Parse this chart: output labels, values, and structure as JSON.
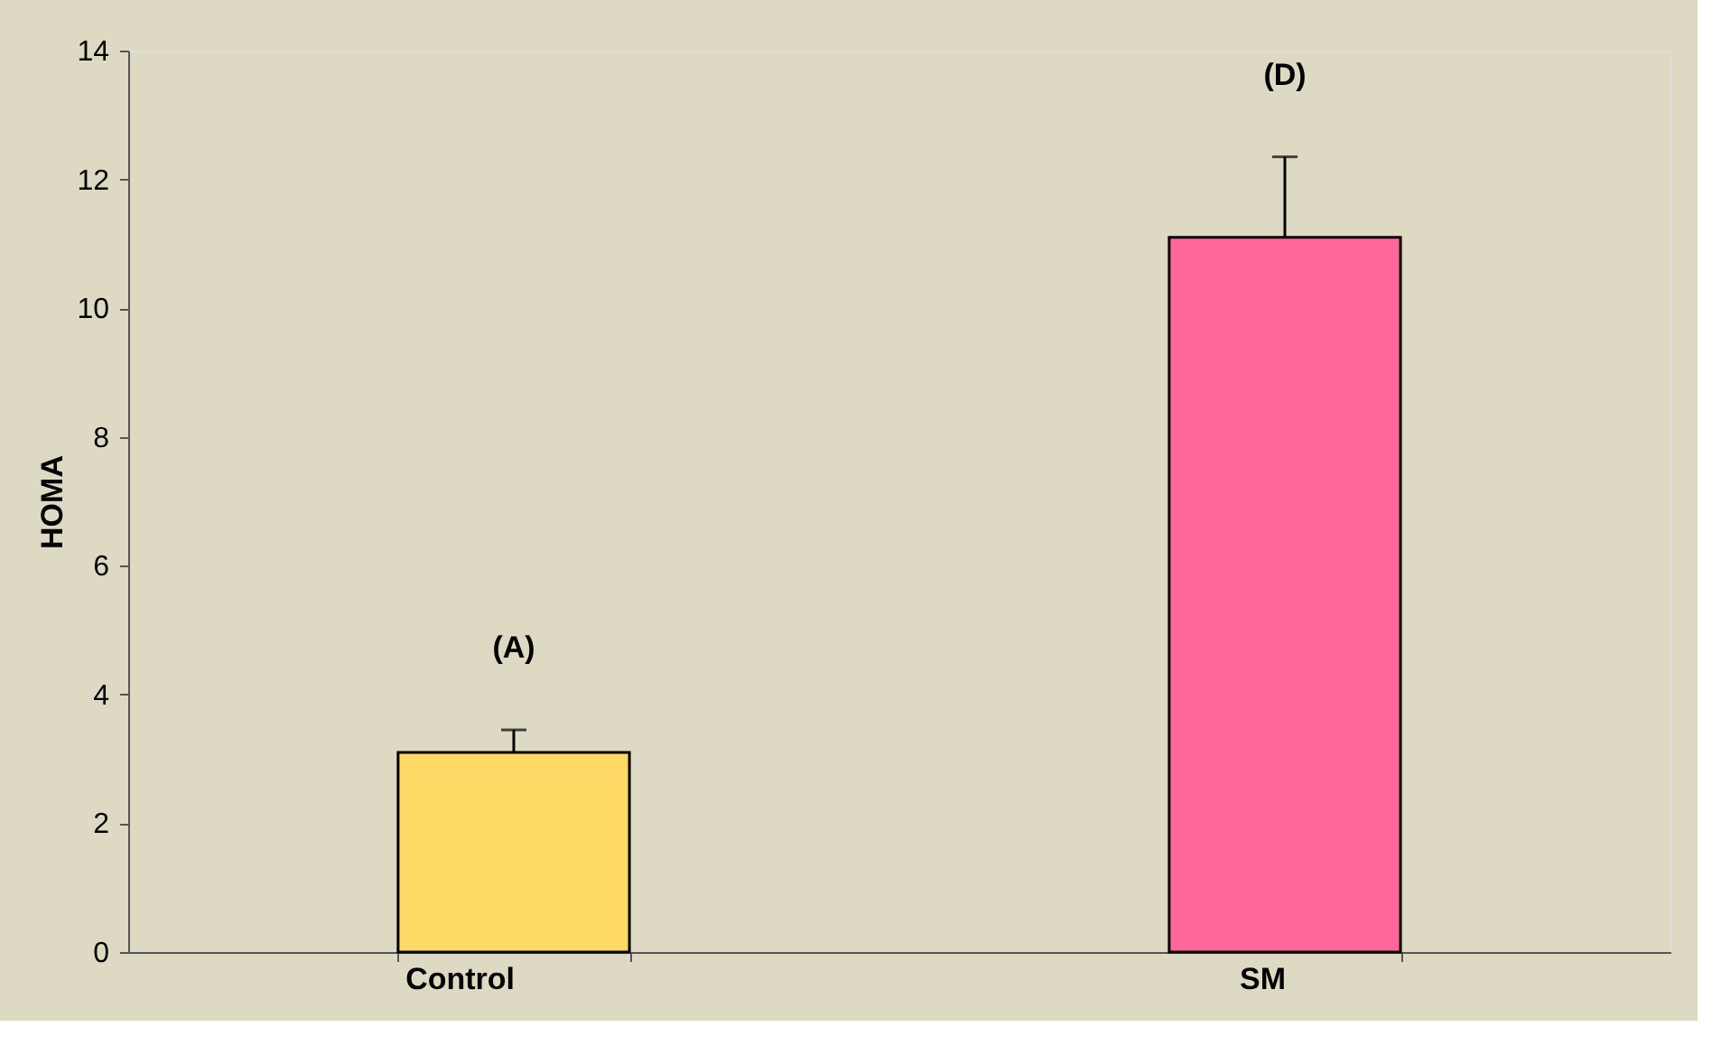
{
  "chart_data": {
    "type": "bar",
    "ylabel": "HOMA",
    "categories": [
      "Control",
      "SM"
    ],
    "values": [
      3.1,
      11.1
    ],
    "errors": [
      0.35,
      1.25
    ],
    "colors": [
      "#ffd966",
      "#ff6699"
    ],
    "ylim": [
      0,
      14
    ],
    "yticks": [
      0,
      2,
      4,
      6,
      8,
      10,
      12,
      14
    ],
    "grid": false,
    "annotations": [
      "(A)",
      "(D)"
    ]
  }
}
